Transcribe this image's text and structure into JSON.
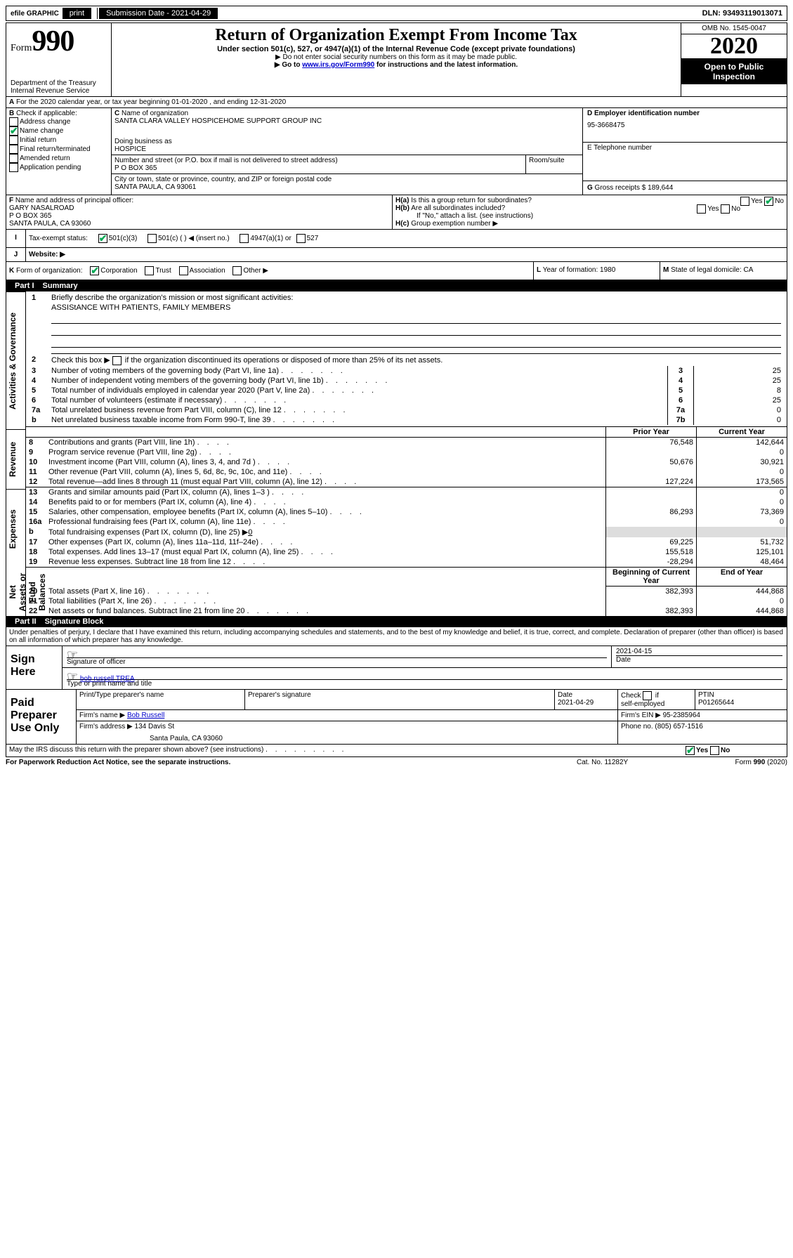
{
  "toolbar": {
    "efile_label": "efile GRAPHIC",
    "print_label": "print",
    "submission_label": "Submission Date - 2021-04-29",
    "dln_label": "DLN: 93493119013071"
  },
  "header": {
    "form_word": "Form",
    "form_number": "990",
    "dept": "Department of the Treasury",
    "irs": "Internal Revenue Service",
    "title": "Return of Organization Exempt From Income Tax",
    "subtitle": "Under section 501(c), 527, or 4947(a)(1) of the Internal Revenue Code (except private foundations)",
    "note1": "▶ Do not enter social security numbers on this form as it may be made public.",
    "note2_pre": "▶ Go to ",
    "note2_link": "www.irs.gov/Form990",
    "note2_post": " for instructions and the latest information.",
    "omb": "OMB No. 1545-0047",
    "year": "2020",
    "open_public": "Open to Public Inspection"
  },
  "topline": {
    "period_a": "A",
    "period_text": " For the 2020 calendar year, or tax year beginning 01-01-2020    , and ending 12-31-2020"
  },
  "boxB": {
    "heading": "B",
    "intro": " Check if applicable:",
    "items": [
      {
        "label": "Address change",
        "checked": false
      },
      {
        "label": "Name change",
        "checked": true
      },
      {
        "label": "Initial return",
        "checked": false
      },
      {
        "label": "Final return/terminated",
        "checked": false
      },
      {
        "label": "Amended return",
        "checked": false
      },
      {
        "label": "Application pending",
        "checked": false
      }
    ]
  },
  "boxC": {
    "c_label": "C",
    "name_label": " Name of organization",
    "name": "SANTA CLARA VALLEY HOSPICEHOME SUPPORT GROUP INC",
    "dba_label": "Doing business as",
    "dba": "HOSPICE",
    "addr_label": "Number and street (or P.O. box if mail is not delivered to street address)",
    "addr": "P O BOX 365",
    "room_label": "Room/suite",
    "city_label": "City or town, state or province, country, and ZIP or foreign postal code",
    "city": "SANTA PAULA, CA  93061"
  },
  "boxD": {
    "label": "D Employer identification number",
    "value": "95-3668475"
  },
  "boxE": {
    "label": "E Telephone number",
    "value": ""
  },
  "boxG": {
    "label": "G",
    "text": " Gross receipts $ 189,644"
  },
  "boxF": {
    "label": "F",
    "text": "  Name and address of principal officer:",
    "name": "GARY NASALROAD",
    "addr": "P O BOX 365",
    "city": "SANTA PAULA, CA  93060"
  },
  "boxH": {
    "a_label": "H(a)",
    "a_text": "  Is this a group return for subordinates?",
    "b_label": "H(b)",
    "b_text": "  Are all subordinates included?",
    "b_note": "If \"No,\" attach a list. (see instructions)",
    "c_label": "H(c)",
    "c_text": "  Group exemption number ▶",
    "yes": "Yes",
    "no": "No"
  },
  "boxI": {
    "label": "I",
    "text": "Tax-exempt status:",
    "opt1": "501(c)(3)",
    "opt2": "501(c) (  ) ◀ (insert no.)",
    "opt3": "4947(a)(1) or",
    "opt4": "527"
  },
  "boxJ": {
    "label": "J",
    "text": "Website: ▶"
  },
  "boxK": {
    "label": "K",
    "text": " Form of organization:",
    "opts": [
      "Corporation",
      "Trust",
      "Association",
      "Other ▶"
    ]
  },
  "boxL": {
    "label": "L",
    "text": " Year of formation: 1980"
  },
  "boxM": {
    "label": "M",
    "text": " State of legal domicile: CA"
  },
  "parts": {
    "p1_num": "Part I",
    "p1_title": "Summary",
    "p2_num": "Part II",
    "p2_title": "Signature Block"
  },
  "side_labels": {
    "ag": "Activities & Governance",
    "rev": "Revenue",
    "exp": "Expenses",
    "nab": "Net Assets or Fund Balances"
  },
  "lines": {
    "l1_label": "1",
    "l1_text": "Briefly describe the organization's mission or most significant activities:",
    "l1_value": "ASSIStANCE WITH PATIENTS, FAMILY MEMBERS",
    "l2_label": "2",
    "l2_text": "Check this box ▶",
    "l2_suffix": " if the organization discontinued its operations or disposed of more than 25% of its net assets.",
    "l3": {
      "n": "3",
      "t": "Number of voting members of the governing body (Part VI, line 1a)",
      "box": "3",
      "v": "25"
    },
    "l4": {
      "n": "4",
      "t": "Number of independent voting members of the governing body (Part VI, line 1b)",
      "box": "4",
      "v": "25"
    },
    "l5": {
      "n": "5",
      "t": "Total number of individuals employed in calendar year 2020 (Part V, line 2a)",
      "box": "5",
      "v": "8"
    },
    "l6": {
      "n": "6",
      "t": "Total number of volunteers (estimate if necessary)",
      "box": "6",
      "v": "25"
    },
    "l7a": {
      "n": "7a",
      "t": "Total unrelated business revenue from Part VIII, column (C), line 12",
      "box": "7a",
      "v": "0"
    },
    "l7b": {
      "n": "b",
      "t": "Net unrelated business taxable income from Form 990-T, line 39",
      "box": "7b",
      "v": "0"
    },
    "prior_hdr": "Prior Year",
    "current_hdr": "Current Year",
    "l8": {
      "n": "8",
      "t": "Contributions and grants (Part VIII, line 1h)",
      "p": "76,548",
      "c": "142,644"
    },
    "l9": {
      "n": "9",
      "t": "Program service revenue (Part VIII, line 2g)",
      "p": "",
      "c": "0"
    },
    "l10": {
      "n": "10",
      "t": "Investment income (Part VIII, column (A), lines 3, 4, and 7d )",
      "p": "50,676",
      "c": "30,921"
    },
    "l11": {
      "n": "11",
      "t": "Other revenue (Part VIII, column (A), lines 5, 6d, 8c, 9c, 10c, and 11e)",
      "p": "",
      "c": "0"
    },
    "l12": {
      "n": "12",
      "t": "Total revenue—add lines 8 through 11 (must equal Part VIII, column (A), line 12)",
      "p": "127,224",
      "c": "173,565"
    },
    "l13": {
      "n": "13",
      "t": "Grants and similar amounts paid (Part IX, column (A), lines 1–3 )",
      "p": "",
      "c": "0"
    },
    "l14": {
      "n": "14",
      "t": "Benefits paid to or for members (Part IX, column (A), line 4)",
      "p": "",
      "c": "0"
    },
    "l15": {
      "n": "15",
      "t": "Salaries, other compensation, employee benefits (Part IX, column (A), lines 5–10)",
      "p": "86,293",
      "c": "73,369"
    },
    "l16a": {
      "n": "16a",
      "t": "Professional fundraising fees (Part IX, column (A), line 11e)",
      "p": "",
      "c": "0"
    },
    "l16b": {
      "n": "b",
      "t": "Total fundraising expenses (Part IX, column (D), line 25) ▶",
      "v": "0"
    },
    "l17": {
      "n": "17",
      "t": "Other expenses (Part IX, column (A), lines 11a–11d, 11f–24e)",
      "p": "69,225",
      "c": "51,732"
    },
    "l18": {
      "n": "18",
      "t": "Total expenses. Add lines 13–17 (must equal Part IX, column (A), line 25)",
      "p": "155,518",
      "c": "125,101"
    },
    "l19": {
      "n": "19",
      "t": "Revenue less expenses. Subtract line 18 from line 12",
      "p": "-28,294",
      "c": "48,464"
    },
    "beg_hdr": "Beginning of Current Year",
    "end_hdr": "End of Year",
    "l20": {
      "n": "20",
      "t": "Total assets (Part X, line 16)",
      "p": "382,393",
      "c": "444,868"
    },
    "l21": {
      "n": "21",
      "t": "Total liabilities (Part X, line 26)",
      "p": "",
      "c": "0"
    },
    "l22": {
      "n": "22",
      "t": "Net assets or fund balances. Subtract line 21 from line 20",
      "p": "382,393",
      "c": "444,868"
    }
  },
  "sig": {
    "jurat": "Under penalties of perjury, I declare that I have examined this return, including accompanying schedules and statements, and to the best of my knowledge and belief, it is true, correct, and complete. Declaration of preparer (other than officer) is based on all information of which preparer has any knowledge.",
    "sign_here": "Sign Here",
    "sig_officer": "Signature of officer",
    "date": "2021-04-15",
    "date_label": "Date",
    "printed_name": "bob russell  TREA",
    "type_label": "Type or print name and title",
    "paid": "Paid Preparer Use Only",
    "prep_name_label": "Print/Type preparer's name",
    "prep_sig_label": "Preparer's signature",
    "prep_date_label": "Date",
    "prep_date": "2021-04-29",
    "check_label": "Check",
    "self_emp": "self-employed",
    "if": "if",
    "ptin_label": "PTIN",
    "ptin": "P01265644",
    "firm_name_label": "Firm's name    ▶",
    "firm_name": "Bob Russell",
    "firm_ein_label": "Firm's EIN ▶",
    "firm_ein": "95-2385964",
    "firm_addr_label": "Firm's address ▶",
    "firm_addr": "134 Davis St",
    "firm_city": "Santa Paula, CA  93060",
    "phone_label": "Phone no. (805) 657-1516",
    "discuss": "May the IRS discuss this return with the preparer shown above? (see instructions)",
    "paperwork": "For Paperwork Reduction Act Notice, see the separate instructions.",
    "cat": "Cat. No. 11282Y",
    "form_foot": "Form ",
    "form_foot_num": "990",
    "form_foot_year": " (2020)"
  },
  "colors": {
    "accent": "#0a5"
  }
}
